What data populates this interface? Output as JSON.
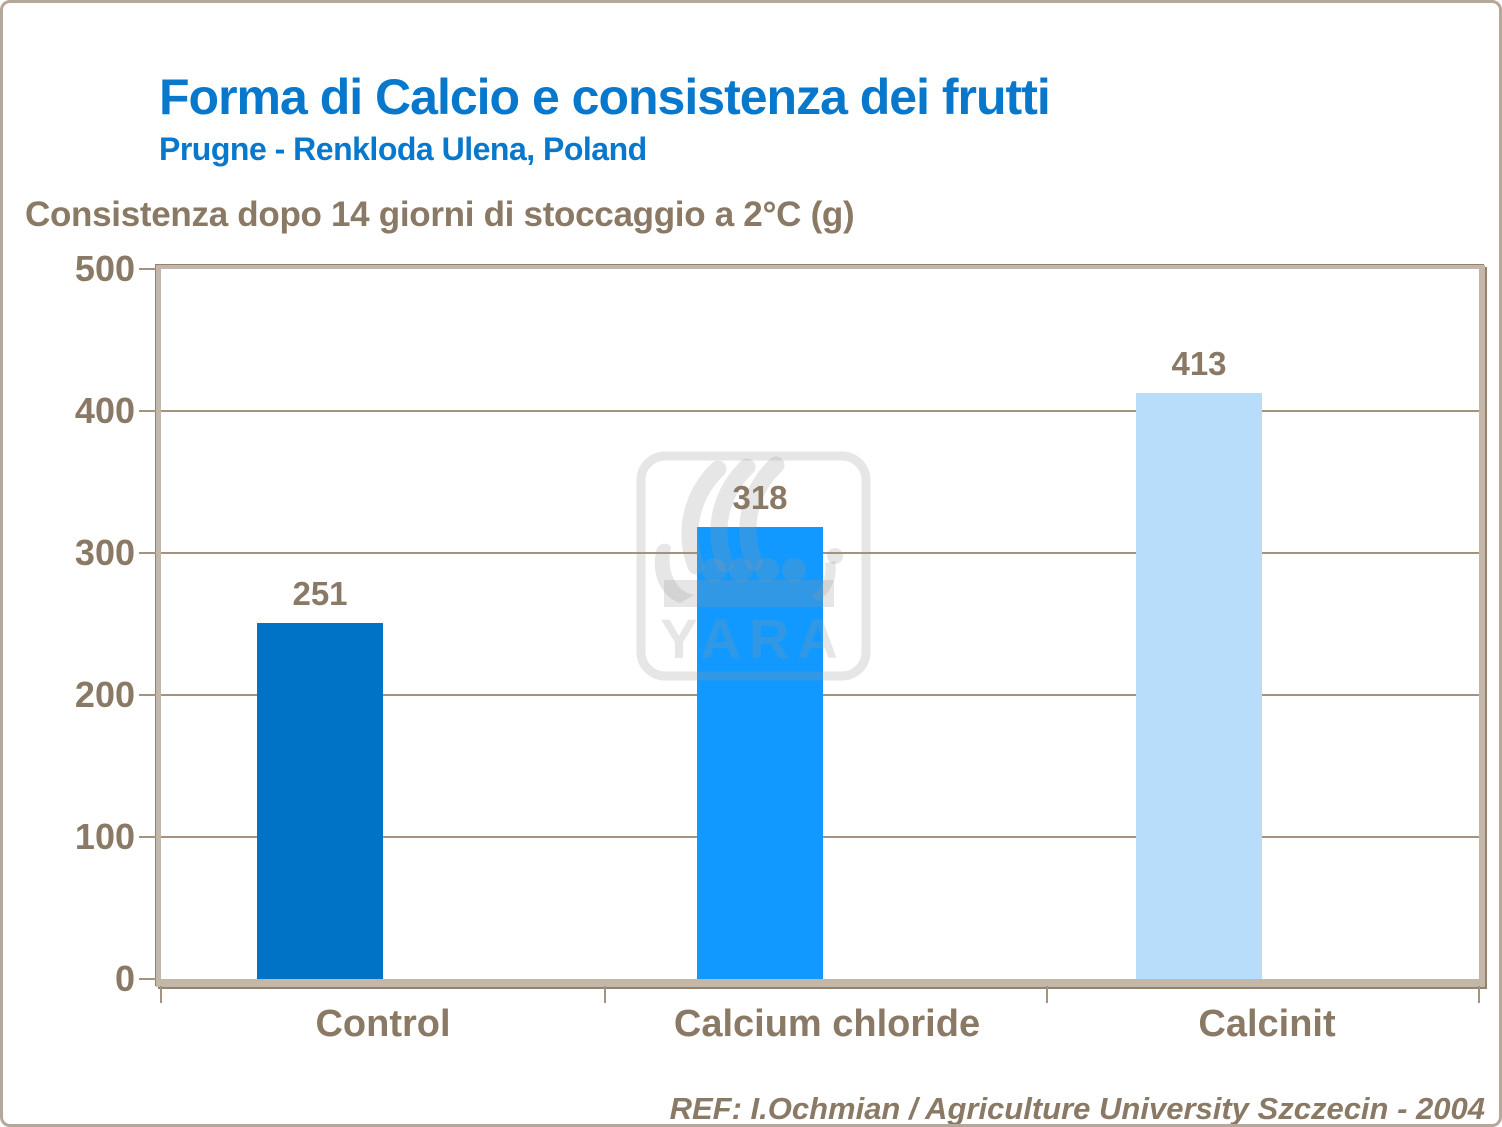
{
  "slide": {
    "title": "Forma di Calcio e consistenza dei frutti",
    "subtitle": "Prugne - Renkloda Ulena, Poland",
    "reference": "REF: I.Ochmian / Agriculture University Szczecin - 2004",
    "watermark_text": "YARA"
  },
  "chart_data": {
    "type": "bar",
    "title": "Consistenza dopo 14 giorni di stoccaggio a 2°C (g)",
    "categories": [
      "Control",
      "Calcium chloride",
      "Calcinit"
    ],
    "values": [
      251,
      318,
      413
    ],
    "bar_colors": [
      "#0173C7",
      "#1299FF",
      "#B7DDFB"
    ],
    "xlabel": "",
    "ylabel": "",
    "ylim": [
      0,
      500
    ],
    "yticks": [
      0,
      100,
      200,
      300,
      400,
      500
    ],
    "grid": true,
    "legend": false,
    "data_labels": true
  },
  "colors": {
    "title_blue": "#0878CC",
    "text_brown": "#8A7964",
    "frame_tan": "#C3B7A9",
    "frame_shadow": "#95826E",
    "gridline": "#A2947E",
    "slide_border": "#B3A899",
    "background": "#FFFFFF"
  }
}
